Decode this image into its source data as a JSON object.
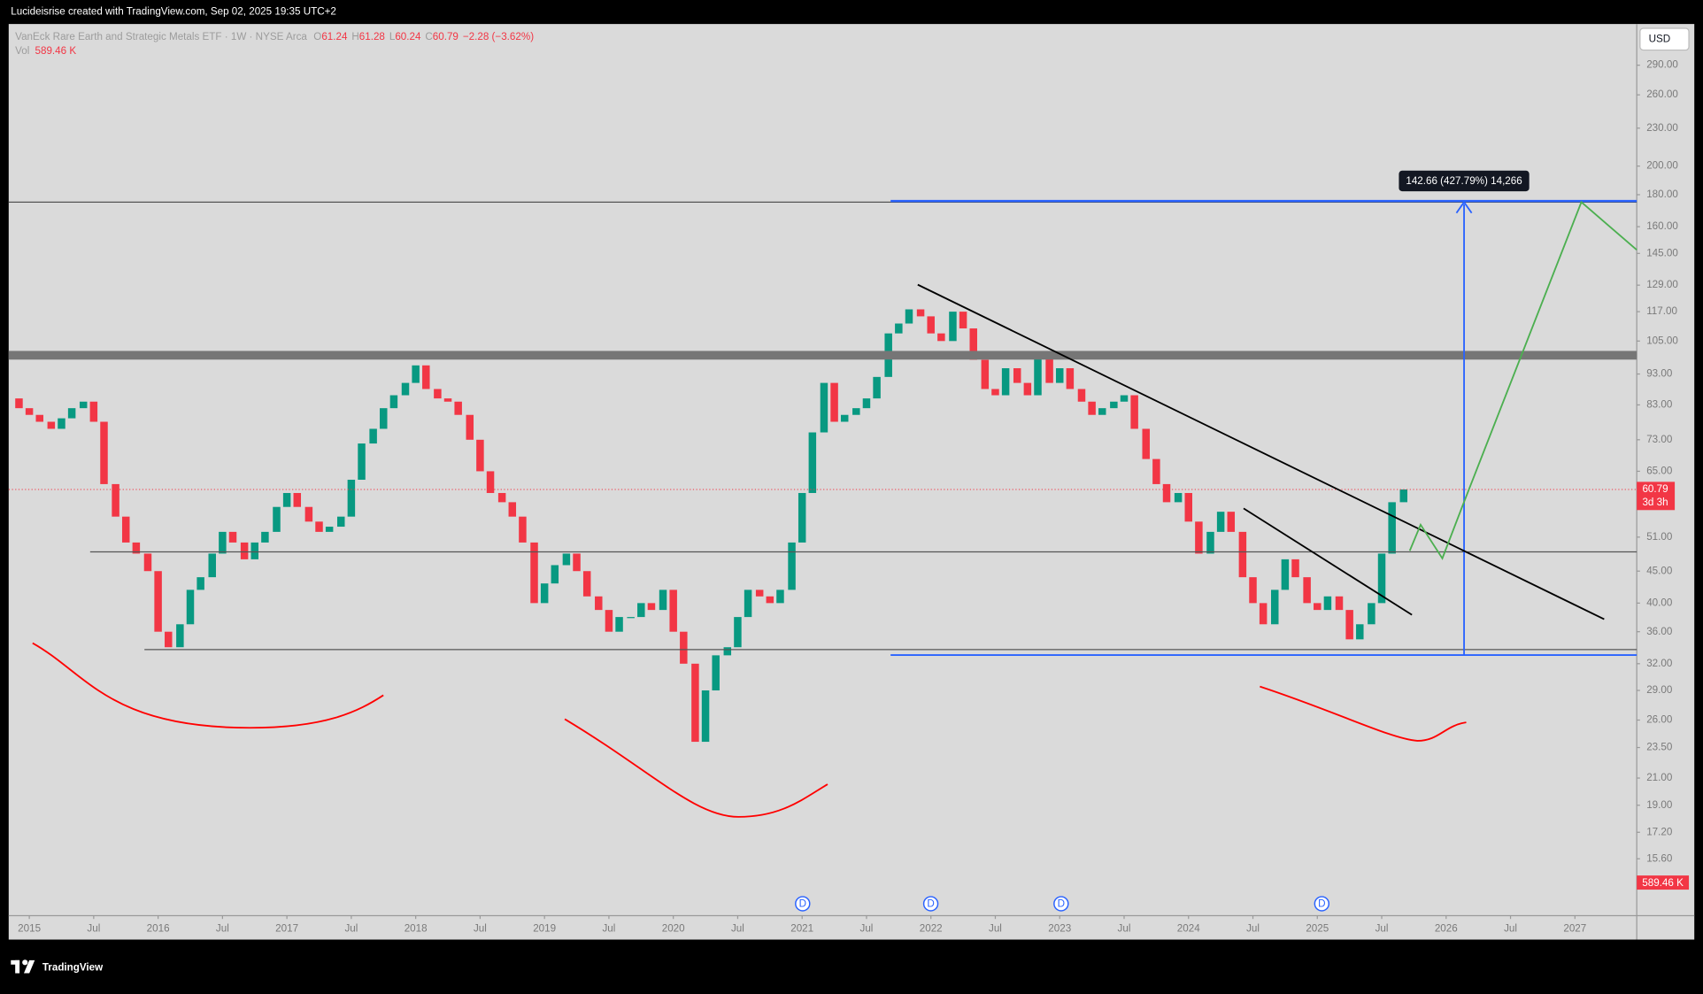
{
  "header": {
    "credit": "Lucideisrise created with TradingView.com, Sep 02, 2025 19:35 UTC+2"
  },
  "chart_data": {
    "type": "candlestick",
    "title": "VanEck Rare Earth and Strategic Metals ETF · 1W · NYSE Arca",
    "legend": {
      "open_label": "O",
      "open": 61.24,
      "high_label": "H",
      "high": 61.28,
      "low_label": "L",
      "low": 60.24,
      "close_label": "C",
      "close": 60.79,
      "change": "−2.28 (−3.62%)",
      "volume_label": "Vol",
      "volume": "589.46 K",
      "countdown": "3d 3h"
    },
    "currency": "USD",
    "up_color": "#089981",
    "down_color": "#f23645",
    "log_scale": true,
    "x": [
      2014.83,
      2014.92,
      2015.0,
      2015.08,
      2015.17,
      2015.25,
      2015.33,
      2015.42,
      2015.5,
      2015.58,
      2015.67,
      2015.75,
      2015.83,
      2015.92,
      2016.0,
      2016.08,
      2016.17,
      2016.25,
      2016.33,
      2016.42,
      2016.5,
      2016.58,
      2016.67,
      2016.75,
      2016.83,
      2016.92,
      2017.0,
      2017.08,
      2017.17,
      2017.25,
      2017.33,
      2017.42,
      2017.5,
      2017.58,
      2017.67,
      2017.75,
      2017.83,
      2017.92,
      2018.0,
      2018.08,
      2018.17,
      2018.25,
      2018.33,
      2018.42,
      2018.5,
      2018.58,
      2018.67,
      2018.75,
      2018.83,
      2018.92,
      2019.0,
      2019.08,
      2019.17,
      2019.25,
      2019.33,
      2019.42,
      2019.5,
      2019.58,
      2019.67,
      2019.75,
      2019.83,
      2019.92,
      2020.0,
      2020.08,
      2020.17,
      2020.25,
      2020.33,
      2020.42,
      2020.5,
      2020.58,
      2020.67,
      2020.75,
      2020.83,
      2020.92,
      2021.0,
      2021.08,
      2021.17,
      2021.25,
      2021.33,
      2021.42,
      2021.5,
      2021.58,
      2021.67,
      2021.75,
      2021.83,
      2021.92,
      2022.0,
      2022.08,
      2022.17,
      2022.25,
      2022.33,
      2022.42,
      2022.5,
      2022.58,
      2022.67,
      2022.75,
      2022.83,
      2022.92,
      2023.0,
      2023.08,
      2023.17,
      2023.25,
      2023.33,
      2023.42,
      2023.5,
      2023.58,
      2023.67,
      2023.75,
      2023.83,
      2023.92,
      2024.0,
      2024.08,
      2024.17,
      2024.25,
      2024.33,
      2024.42,
      2024.5,
      2024.58,
      2024.67,
      2024.75,
      2024.83,
      2024.92,
      2025.0,
      2025.08,
      2025.17,
      2025.25,
      2025.33,
      2025.42,
      2025.5,
      2025.58,
      2025.67
    ],
    "values": [
      85,
      82,
      80,
      78,
      76,
      79,
      82,
      84,
      78,
      62,
      55,
      50,
      48,
      45,
      36,
      34,
      37,
      42,
      44,
      48,
      52,
      50,
      47,
      50,
      52,
      57,
      60,
      57,
      54,
      52,
      53,
      55,
      63,
      72,
      76,
      82,
      86,
      90,
      96,
      88,
      85,
      84,
      80,
      73,
      65,
      60,
      58,
      55,
      50,
      40,
      43,
      46,
      48,
      45,
      41,
      39,
      36,
      38,
      38,
      40,
      39,
      42,
      36,
      32,
      24,
      29,
      33,
      34,
      38,
      42,
      41,
      40,
      42,
      50,
      60,
      75,
      90,
      78,
      80,
      82,
      85,
      92,
      108,
      112,
      118,
      115,
      108,
      105,
      117,
      110,
      98,
      88,
      86,
      95,
      90,
      86,
      100,
      90,
      95,
      88,
      84,
      80,
      82,
      84,
      86,
      76,
      68,
      62,
      58,
      60,
      54,
      48,
      52,
      56,
      52,
      44,
      40,
      37,
      42,
      47,
      44,
      40,
      39,
      41,
      39,
      35,
      37,
      40,
      48,
      58,
      60.79
    ],
    "xlim": [
      2014.84,
      2027.48
    ],
    "xticks": [
      2015,
      {
        "value": 2015.5,
        "label": "Jul"
      },
      2016,
      {
        "value": 2016.5,
        "label": "Jul"
      },
      2017,
      {
        "value": 2017.5,
        "label": "Jul"
      },
      2018,
      {
        "value": 2018.5,
        "label": "Jul"
      },
      2019,
      {
        "value": 2019.5,
        "label": "Jul"
      },
      2020,
      {
        "value": 2020.5,
        "label": "Jul"
      },
      2021,
      {
        "value": 2021.5,
        "label": "Jul"
      },
      2022,
      {
        "value": 2022.5,
        "label": "Jul"
      },
      2023,
      {
        "value": 2023.5,
        "label": "Jul"
      },
      2024,
      {
        "value": 2024.5,
        "label": "Jul"
      },
      2025,
      {
        "value": 2025.5,
        "label": "Jul"
      },
      2026,
      {
        "value": 2026.5,
        "label": "Jul"
      },
      2027
    ],
    "ylim": [
      12.65,
      337.5
    ],
    "yticks": [
      {
        "value": 290,
        "label": "290.00"
      },
      {
        "value": 260,
        "label": "260.00"
      },
      {
        "value": 230,
        "label": "230.00"
      },
      {
        "value": 200,
        "label": "200.00"
      },
      {
        "value": 180,
        "label": "180.00"
      },
      {
        "value": 160,
        "label": "160.00"
      },
      {
        "value": 145,
        "label": "145.00"
      },
      {
        "value": 129,
        "label": "129.00"
      },
      {
        "value": 117,
        "label": "117.00"
      },
      {
        "value": 105,
        "label": "105.00"
      },
      {
        "value": 93,
        "label": "93.00"
      },
      {
        "value": 83,
        "label": "83.00"
      },
      {
        "value": 73,
        "label": "73.00"
      },
      {
        "value": 65,
        "label": "65.00"
      },
      {
        "value": 51,
        "label": "51.00"
      },
      {
        "value": 45,
        "label": "45.00"
      },
      {
        "value": 40,
        "label": "40.00"
      },
      {
        "value": 36,
        "label": "36.00"
      },
      {
        "value": 32,
        "label": "32.00"
      },
      {
        "value": 29,
        "label": "29.00"
      },
      {
        "value": 26,
        "label": "26.00"
      },
      {
        "value": 23.5,
        "label": "23.50"
      },
      {
        "value": 21,
        "label": "21.00"
      },
      {
        "value": 19,
        "label": "19.00"
      },
      {
        "value": 17.2,
        "label": "17.20"
      },
      {
        "value": 15.6,
        "label": "15.60"
      }
    ],
    "grid": false,
    "annotation": "142.66 (427.79%) 14,266",
    "dividends": [
      "D",
      "D",
      "D",
      "D"
    ]
  },
  "footer": {
    "brand": "TradingView"
  }
}
